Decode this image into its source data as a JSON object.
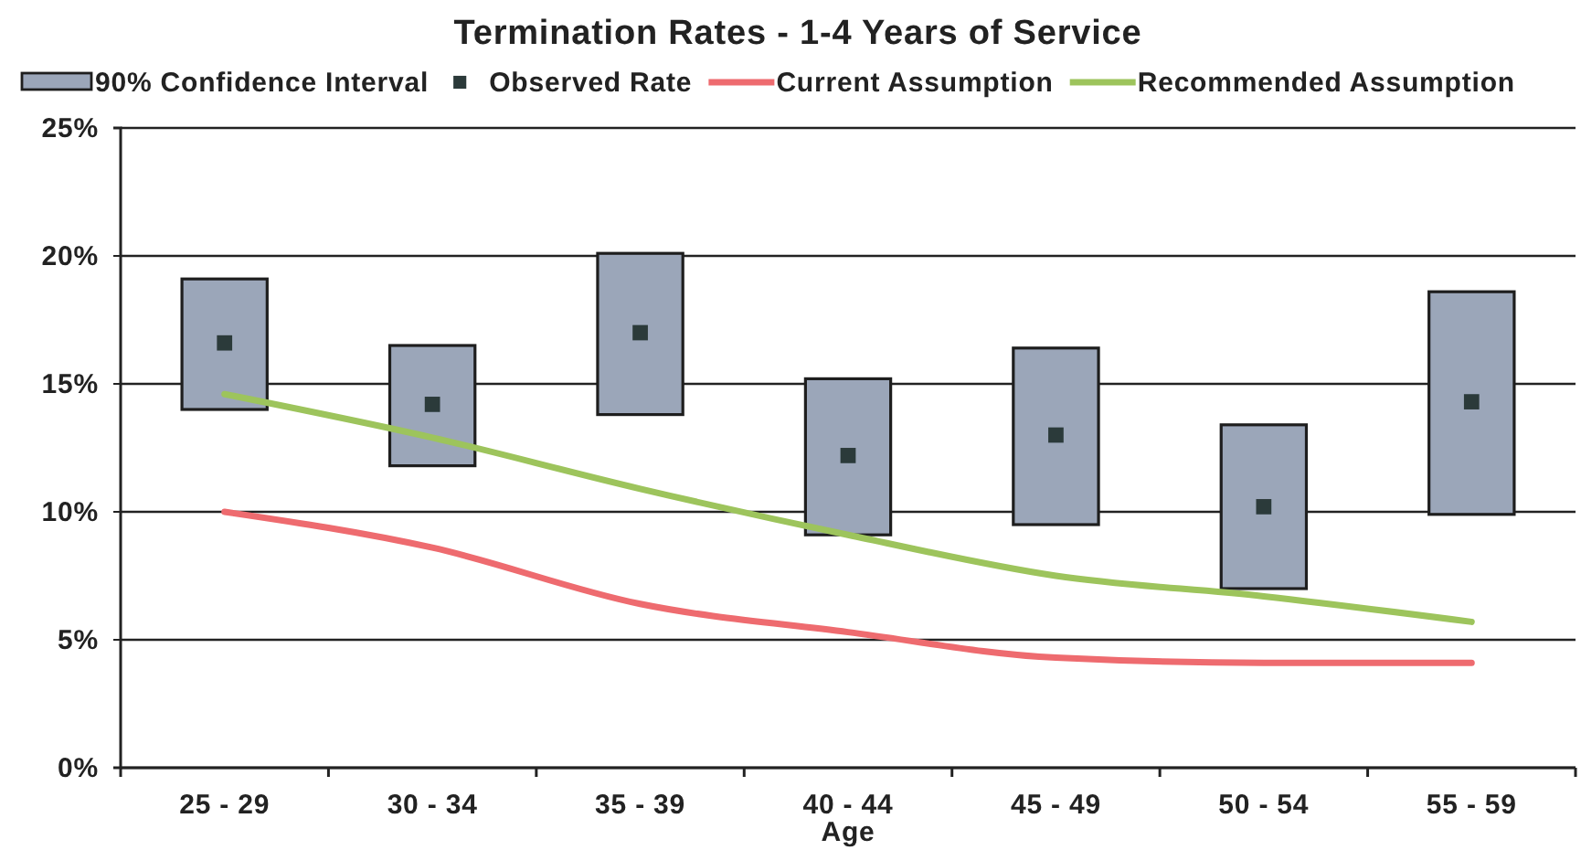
{
  "chart_data": {
    "type": "bar",
    "title": "Termination Rates - 1-4 Years of Service",
    "xlabel": "Age",
    "categories": [
      "25 - 29",
      "30 - 34",
      "35 - 39",
      "40 - 44",
      "45 - 49",
      "50 - 54",
      "55 - 59"
    ],
    "series": [
      {
        "name": "90% Confidence Interval",
        "color": "#9ba6b9",
        "base": [
          14.0,
          11.8,
          13.8,
          9.1,
          9.5,
          7.0,
          9.9
        ],
        "values": [
          5.1,
          4.7,
          6.3,
          6.1,
          6.9,
          6.4,
          8.7
        ]
      },
      {
        "name": "Observed Rate",
        "type": "scatter",
        "marker": "square",
        "color": "#2b3a3a",
        "values": [
          16.6,
          14.2,
          17.0,
          12.2,
          13.0,
          10.2,
          14.3
        ]
      },
      {
        "name": "Current Assumption",
        "type": "line",
        "marker": "none",
        "color": "#ee6b6f",
        "values": [
          10.0,
          8.6,
          6.4,
          5.3,
          4.3,
          4.1,
          4.1
        ]
      },
      {
        "name": "Recommended Assumption",
        "type": "line",
        "marker": "none",
        "color": "#9dc45c",
        "values": [
          14.6,
          12.9,
          10.9,
          9.1,
          7.5,
          6.7,
          5.7
        ]
      }
    ],
    "ylim": [
      0,
      25
    ],
    "yticks": [
      {
        "value": 0,
        "label": "0%"
      },
      {
        "value": 5,
        "label": "5%"
      },
      {
        "value": 10,
        "label": "10%"
      },
      {
        "value": 15,
        "label": "15%"
      },
      {
        "value": 20,
        "label": "20%"
      },
      {
        "value": 25,
        "label": "25%"
      }
    ],
    "grid": "y",
    "legend": "top"
  }
}
